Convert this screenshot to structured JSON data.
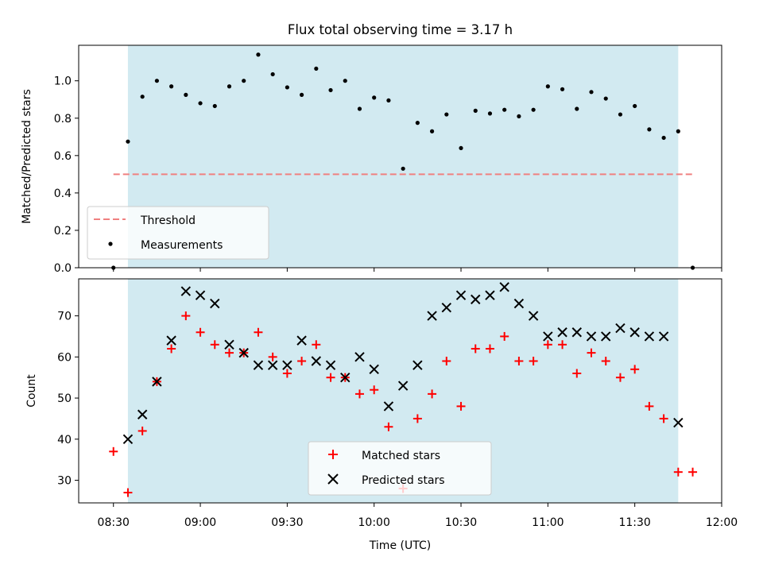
{
  "chart_data": [
    {
      "type": "scatter",
      "title": "Flux total observing time = 3.17 h",
      "xlabel": "",
      "ylabel": "Matched/Predicted stars",
      "x_domain": [
        "08:18",
        "12:00"
      ],
      "ylim": [
        0,
        1.19
      ],
      "yticks": [
        0.0,
        0.2,
        0.4,
        0.6,
        0.8,
        1.0
      ],
      "ytick_labels": [
        "0.0",
        "0.2",
        "0.4",
        "0.6",
        "0.8",
        "1.0"
      ],
      "shaded_interval": [
        "08:35",
        "11:45"
      ],
      "shade_color": "#add8e6",
      "threshold": {
        "name": "Threshold",
        "value": 0.5,
        "x": [
          "08:30",
          "11:50"
        ],
        "color": "#f08080"
      },
      "legend": {
        "position": "lower-left",
        "entries": [
          "Threshold",
          "Measurements"
        ]
      },
      "series": [
        {
          "name": "Measurements",
          "marker": "dot",
          "color": "#000000",
          "x": [
            "08:30",
            "08:35",
            "08:40",
            "08:45",
            "08:50",
            "08:55",
            "09:00",
            "09:05",
            "09:10",
            "09:15",
            "09:20",
            "09:25",
            "09:30",
            "09:35",
            "09:40",
            "09:45",
            "09:50",
            "09:55",
            "10:00",
            "10:05",
            "10:10",
            "10:15",
            "10:20",
            "10:25",
            "10:30",
            "10:35",
            "10:40",
            "10:45",
            "10:50",
            "10:55",
            "11:00",
            "11:05",
            "11:10",
            "11:15",
            "11:20",
            "11:25",
            "11:30",
            "11:35",
            "11:40",
            "11:45",
            "11:50"
          ],
          "y": [
            0.0,
            0.675,
            0.915,
            1.0,
            0.97,
            0.925,
            0.88,
            0.865,
            0.97,
            1.0,
            1.14,
            1.035,
            0.965,
            0.925,
            1.065,
            0.95,
            1.0,
            0.85,
            0.91,
            0.895,
            0.53,
            0.775,
            0.73,
            0.82,
            0.64,
            0.84,
            0.825,
            0.845,
            0.81,
            0.845,
            0.97,
            0.955,
            0.85,
            0.94,
            0.905,
            0.82,
            0.865,
            0.74,
            0.695,
            0.73,
            0.0
          ]
        }
      ]
    },
    {
      "type": "scatter",
      "xlabel": "Time (UTC)",
      "ylabel": "Count",
      "x_domain": [
        "08:18",
        "12:00"
      ],
      "ylim": [
        24.5,
        79
      ],
      "yticks": [
        30,
        40,
        50,
        60,
        70
      ],
      "ytick_labels": [
        "30",
        "40",
        "50",
        "60",
        "70"
      ],
      "xticks": [
        "08:30",
        "09:00",
        "09:30",
        "10:00",
        "10:30",
        "11:00",
        "11:30",
        "12:00"
      ],
      "xtick_labels": [
        "08:30",
        "09:00",
        "09:30",
        "10:00",
        "10:30",
        "11:00",
        "11:30",
        "12:00"
      ],
      "shaded_interval": [
        "08:35",
        "11:45"
      ],
      "shade_color": "#add8e6",
      "legend": {
        "position": "lower-center",
        "entries": [
          "Matched stars",
          "Predicted stars"
        ]
      },
      "series": [
        {
          "name": "Matched stars",
          "marker": "plus",
          "color": "#ff0000",
          "x": [
            "08:30",
            "08:35",
            "08:40",
            "08:45",
            "08:50",
            "08:55",
            "09:00",
            "09:05",
            "09:10",
            "09:15",
            "09:20",
            "09:25",
            "09:30",
            "09:35",
            "09:40",
            "09:45",
            "09:50",
            "09:55",
            "10:00",
            "10:05",
            "10:10",
            "10:15",
            "10:20",
            "10:25",
            "10:30",
            "10:35",
            "10:40",
            "10:45",
            "10:50",
            "10:55",
            "11:00",
            "11:05",
            "11:10",
            "11:15",
            "11:20",
            "11:25",
            "11:30",
            "11:35",
            "11:40",
            "11:45",
            "11:50"
          ],
          "y": [
            37,
            27,
            42,
            54,
            62,
            70,
            66,
            63,
            61,
            61,
            66,
            60,
            56,
            59,
            63,
            55,
            55,
            51,
            52,
            43,
            28,
            45,
            51,
            59,
            48,
            62,
            62,
            65,
            59,
            59,
            63,
            63,
            56,
            61,
            59,
            55,
            57,
            48,
            45,
            32,
            32
          ]
        },
        {
          "name": "Predicted stars",
          "marker": "x",
          "color": "#000000",
          "x": [
            "08:35",
            "08:40",
            "08:45",
            "08:50",
            "08:55",
            "09:00",
            "09:05",
            "09:10",
            "09:15",
            "09:20",
            "09:25",
            "09:30",
            "09:35",
            "09:40",
            "09:45",
            "09:50",
            "09:55",
            "10:00",
            "10:05",
            "10:10",
            "10:15",
            "10:20",
            "10:25",
            "10:30",
            "10:35",
            "10:40",
            "10:45",
            "10:50",
            "10:55",
            "11:00",
            "11:05",
            "11:10",
            "11:15",
            "11:20",
            "11:25",
            "11:30",
            "11:35",
            "11:40",
            "11:45"
          ],
          "y": [
            40,
            46,
            54,
            64,
            76,
            75,
            73,
            63,
            61,
            58,
            58,
            58,
            64,
            59,
            58,
            55,
            60,
            57,
            48,
            53,
            58,
            70,
            72,
            75,
            74,
            75,
            77,
            73,
            70,
            65,
            66,
            66,
            65,
            65,
            67,
            66,
            65,
            65,
            44
          ]
        }
      ]
    }
  ]
}
